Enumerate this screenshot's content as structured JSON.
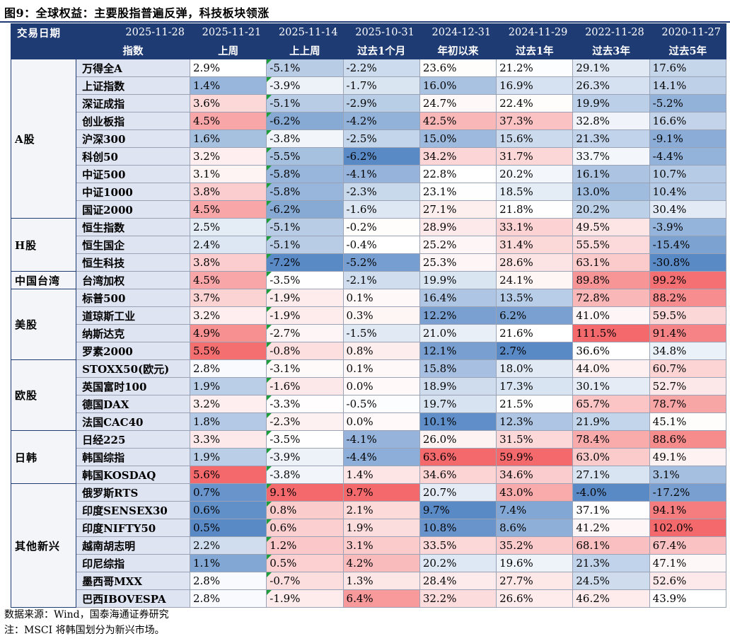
{
  "title": "图9：全球权益：主要股指普遍反弹，科技板块领涨",
  "header": {
    "date_label": "交易日期",
    "index_label": "指数",
    "dates": [
      "2025-11-28",
      "2025-11-21",
      "2025-11-14",
      "2025-10-31",
      "2024-12-31",
      "2024-11-29",
      "2022-11-28",
      "2020-11-27"
    ],
    "periods": [
      "上周",
      "上上周",
      "过去1个月",
      "年初以来",
      "过去1年",
      "过去3年",
      "过去5年"
    ]
  },
  "groups": [
    {
      "region": "A股",
      "rows": [
        {
          "name": "万得全A",
          "values": [
            "2.9%",
            "-5.1%",
            "-2.2%",
            "23.6%",
            "21.2%",
            "29.1%",
            "17.6%"
          ]
        },
        {
          "name": "上证指数",
          "values": [
            "1.4%",
            "-3.9%",
            "-1.7%",
            "16.0%",
            "16.9%",
            "26.3%",
            "14.1%"
          ]
        },
        {
          "name": "深证成指",
          "values": [
            "3.6%",
            "-5.1%",
            "-2.9%",
            "24.7%",
            "22.4%",
            "19.9%",
            "-5.2%"
          ]
        },
        {
          "name": "创业板指",
          "values": [
            "4.5%",
            "-6.2%",
            "-4.2%",
            "42.5%",
            "37.3%",
            "32.8%",
            "16.6%"
          ]
        },
        {
          "name": "沪深300",
          "values": [
            "1.6%",
            "-3.8%",
            "-2.5%",
            "15.0%",
            "15.6%",
            "21.3%",
            "-9.1%"
          ]
        },
        {
          "name": "科创50",
          "values": [
            "3.2%",
            "-5.5%",
            "-6.2%",
            "34.2%",
            "31.7%",
            "33.7%",
            "-4.4%"
          ]
        },
        {
          "name": "中证500",
          "values": [
            "3.1%",
            "-5.8%",
            "-4.1%",
            "22.8%",
            "20.2%",
            "16.1%",
            "10.7%"
          ]
        },
        {
          "name": "中证1000",
          "values": [
            "3.8%",
            "-5.8%",
            "-2.3%",
            "23.1%",
            "18.5%",
            "13.0%",
            "10.4%"
          ]
        },
        {
          "name": "国证2000",
          "values": [
            "4.5%",
            "-6.2%",
            "-1.6%",
            "27.1%",
            "21.8%",
            "20.2%",
            "30.4%"
          ]
        }
      ]
    },
    {
      "region": "H股",
      "rows": [
        {
          "name": "恒生指数",
          "values": [
            "2.5%",
            "-5.1%",
            "-0.2%",
            "28.9%",
            "33.1%",
            "49.5%",
            "-3.9%"
          ]
        },
        {
          "name": "恒生国企",
          "values": [
            "2.4%",
            "-5.1%",
            "-0.4%",
            "25.2%",
            "31.4%",
            "55.5%",
            "-15.4%"
          ]
        },
        {
          "name": "恒生科技",
          "values": [
            "3.8%",
            "-7.2%",
            "-5.2%",
            "25.3%",
            "28.6%",
            "63.1%",
            "-30.8%"
          ]
        }
      ]
    },
    {
      "region": "中国台湾",
      "rows": [
        {
          "name": "台湾加权",
          "values": [
            "4.5%",
            "-3.5%",
            "-2.1%",
            "19.9%",
            "24.1%",
            "89.8%",
            "99.2%"
          ]
        }
      ]
    },
    {
      "region": "美股",
      "rows": [
        {
          "name": "标普500",
          "values": [
            "3.7%",
            "-1.9%",
            "0.1%",
            "16.4%",
            "13.5%",
            "72.8%",
            "88.2%"
          ]
        },
        {
          "name": "道琼斯工业",
          "values": [
            "3.2%",
            "-1.9%",
            "0.3%",
            "12.2%",
            "6.2%",
            "41.0%",
            "59.5%"
          ]
        },
        {
          "name": "纳斯达克",
          "values": [
            "4.9%",
            "-2.7%",
            "-1.5%",
            "21.0%",
            "21.6%",
            "111.5%",
            "91.4%"
          ]
        },
        {
          "name": "罗素2000",
          "values": [
            "5.5%",
            "-0.8%",
            "0.8%",
            "12.1%",
            "2.7%",
            "36.6%",
            "34.8%"
          ]
        }
      ]
    },
    {
      "region": "欧股",
      "rows": [
        {
          "name": "STOXX50(欧元)",
          "values": [
            "2.8%",
            "-3.1%",
            "0.1%",
            "15.8%",
            "18.0%",
            "44.0%",
            "60.7%"
          ]
        },
        {
          "name": "英国富时100",
          "values": [
            "1.9%",
            "-1.6%",
            "0.0%",
            "18.9%",
            "17.3%",
            "30.1%",
            "52.7%"
          ]
        },
        {
          "name": "德国DAX",
          "values": [
            "3.2%",
            "-3.3%",
            "-0.5%",
            "19.7%",
            "21.5%",
            "65.7%",
            "78.7%"
          ]
        },
        {
          "name": "法国CAC40",
          "values": [
            "1.8%",
            "-2.3%",
            "0.0%",
            "10.1%",
            "12.3%",
            "21.9%",
            "45.1%"
          ]
        }
      ]
    },
    {
      "region": "日韩",
      "rows": [
        {
          "name": "日经225",
          "values": [
            "3.3%",
            "-3.5%",
            "-4.1%",
            "26.0%",
            "31.5%",
            "78.4%",
            "88.6%"
          ]
        },
        {
          "name": "韩国综指",
          "values": [
            "1.9%",
            "-3.9%",
            "-4.4%",
            "63.6%",
            "59.9%",
            "63.0%",
            "49.1%"
          ]
        },
        {
          "name": "韩国KOSDAQ",
          "values": [
            "5.6%",
            "-3.8%",
            "1.4%",
            "34.6%",
            "34.6%",
            "27.1%",
            "3.1%"
          ]
        }
      ]
    },
    {
      "region": "其他新兴",
      "rows": [
        {
          "name": "俄罗斯RTS",
          "values": [
            "0.7%",
            "9.1%",
            "9.7%",
            "20.7%",
            "43.0%",
            "-4.0%",
            "-17.2%"
          ]
        },
        {
          "name": "印度SENSEX30",
          "values": [
            "0.6%",
            "0.8%",
            "2.1%",
            "9.7%",
            "7.4%",
            "37.1%",
            "94.1%"
          ]
        },
        {
          "name": "印度NIFTY50",
          "values": [
            "0.5%",
            "0.6%",
            "1.9%",
            "10.8%",
            "8.6%",
            "41.2%",
            "102.0%"
          ]
        },
        {
          "name": "越南胡志明",
          "values": [
            "2.2%",
            "1.2%",
            "3.1%",
            "33.5%",
            "35.2%",
            "68.1%",
            "67.4%"
          ]
        },
        {
          "name": "印尼综指",
          "values": [
            "1.1%",
            "0.5%",
            "4.2%",
            "20.2%",
            "19.6%",
            "21.3%",
            "47.1%"
          ]
        },
        {
          "name": "墨西哥MXX",
          "values": [
            "2.8%",
            "-0.7%",
            "1.3%",
            "28.4%",
            "27.7%",
            "24.5%",
            "52.6%"
          ]
        },
        {
          "name": "巴西IBOVESPA",
          "values": [
            "2.8%",
            "-1.9%",
            "6.4%",
            "32.2%",
            "26.6%",
            "46.2%",
            "43.9%"
          ]
        }
      ]
    }
  ],
  "colors": {
    "header_bg": "#1f3b73",
    "positive": "#f4696b",
    "negative": "#5a8ac6",
    "neutral": "#ffffff"
  },
  "source": "数据来源：Wind，国泰海通证券研究",
  "note": "注：MSCI 将韩国划分为新兴市场。"
}
